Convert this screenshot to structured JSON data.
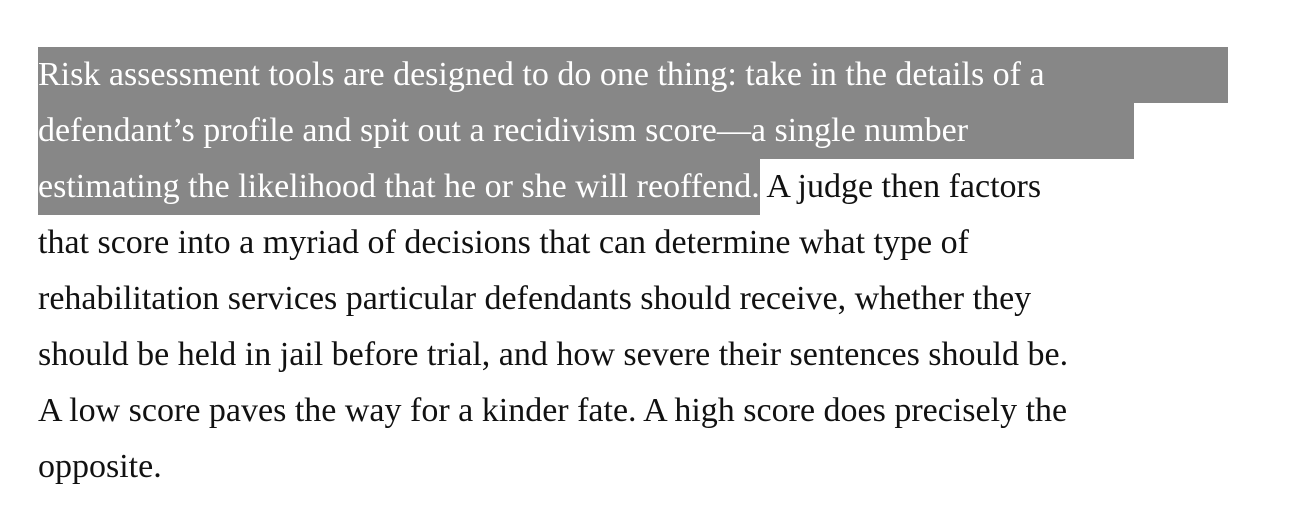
{
  "paragraph": {
    "lines": [
      {
        "highlighted": "Risk assessment tools are designed to do one thing: take in the details of a",
        "plain": ""
      },
      {
        "highlighted": "defendant’s profile and spit out a recidivism score—a single number",
        "plain": ""
      },
      {
        "highlighted": "estimating the likelihood that he or she will reoffend.",
        "plain": " A judge then factors"
      },
      {
        "highlighted": "",
        "plain": "that score into a myriad of decisions that can determine what type of"
      },
      {
        "highlighted": "",
        "plain": "rehabilitation services particular defendants should receive, whether they"
      },
      {
        "highlighted": "",
        "plain": "should be held in jail before trial, and how severe their sentences should be."
      },
      {
        "highlighted": "",
        "plain": "A low score paves the way for a kinder fate. A high score does precisely the"
      },
      {
        "highlighted": "",
        "plain": "opposite."
      }
    ]
  },
  "colors": {
    "highlight_background": "#878787",
    "highlight_text": "#ffffff",
    "body_text": "#111111",
    "page_background": "#ffffff"
  }
}
